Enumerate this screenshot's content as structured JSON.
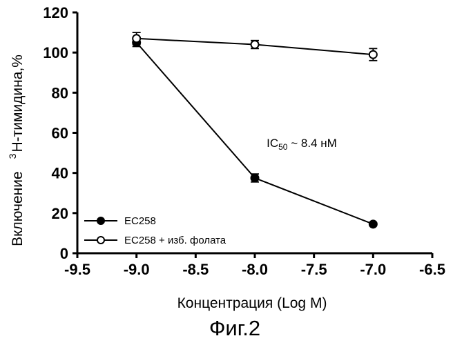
{
  "chart_data": {
    "type": "line",
    "xlabel": "Концентрация (Log M)",
    "ylabel": "Включение",
    "ylabel_superscript": "3",
    "ylabel_rest": "H-тимидина,%",
    "xlim": [
      -9.5,
      -6.5
    ],
    "ylim": [
      0,
      120
    ],
    "xticks": [
      -9.5,
      -9.0,
      -8.5,
      -8.0,
      -7.5,
      -7.0,
      -6.5
    ],
    "xtick_labels": [
      "-9.5",
      "-9.0",
      "-8.5",
      "-8.0",
      "-7.5",
      "-7.0",
      "-6.5"
    ],
    "yticks": [
      0,
      20,
      40,
      60,
      80,
      100,
      120
    ],
    "ytick_labels": [
      "0",
      "20",
      "40",
      "60",
      "80",
      "100",
      "120"
    ],
    "grid": false,
    "legend_position": "bottom-left",
    "series": [
      {
        "name": "EC258",
        "marker": "filled-circle",
        "x": [
          -9.0,
          -8.0,
          -7.0
        ],
        "y": [
          105,
          37.5,
          14.5
        ],
        "err": [
          2,
          2,
          0
        ]
      },
      {
        "name": "EC258 + изб. фолата",
        "marker": "open-circle",
        "x": [
          -9.0,
          -8.0,
          -7.0
        ],
        "y": [
          107,
          104,
          99
        ],
        "err": [
          3,
          2,
          3
        ]
      }
    ],
    "annotation": {
      "prefix": "IC",
      "subscript": "50",
      "suffix": " ~ 8.4 нМ",
      "x": -7.9,
      "y": 55
    }
  },
  "caption": "Фиг.2"
}
